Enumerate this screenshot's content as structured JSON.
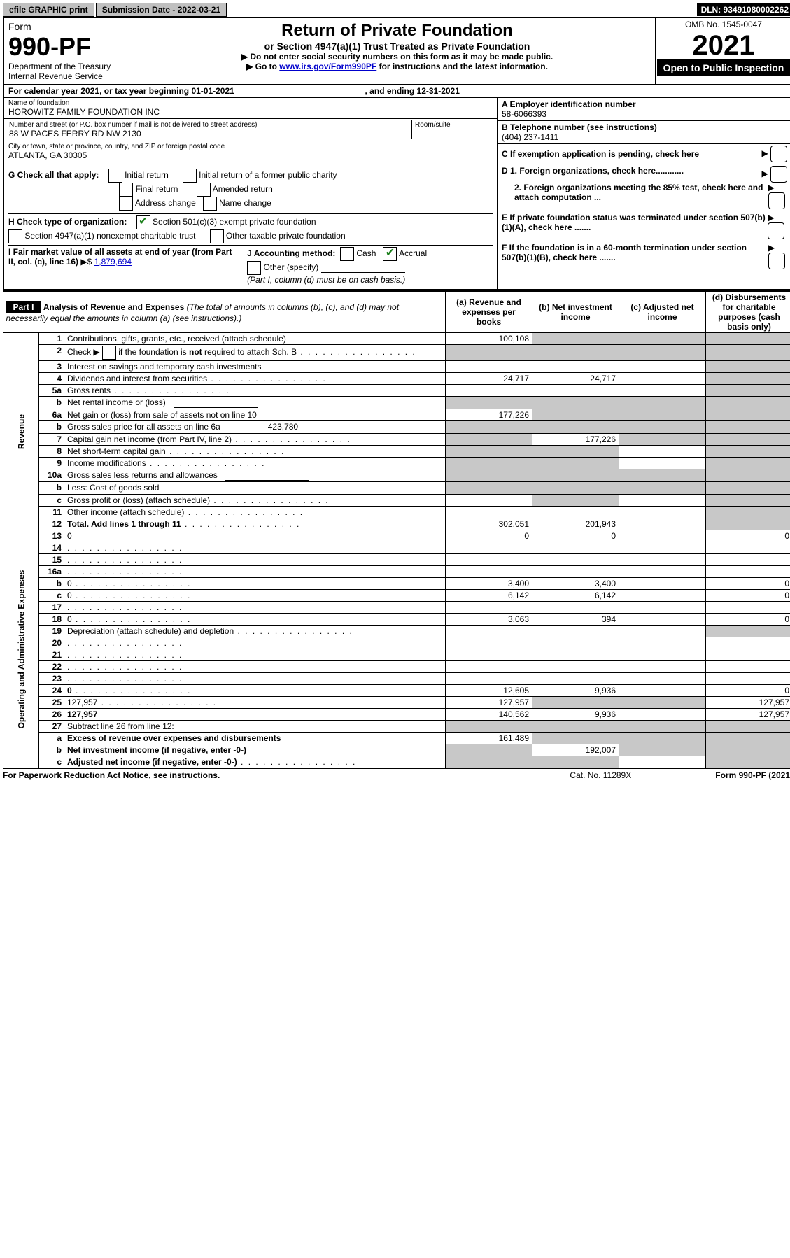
{
  "topbar": {
    "efile": "efile GRAPHIC print",
    "submission_label": "Submission Date - 2022-03-21",
    "dln": "DLN: 93491080002262"
  },
  "header": {
    "form_word": "Form",
    "form_number": "990-PF",
    "dept": "Department of the Treasury",
    "irs": "Internal Revenue Service",
    "title": "Return of Private Foundation",
    "subtitle": "or Section 4947(a)(1) Trust Treated as Private Foundation",
    "note1": "▶ Do not enter social security numbers on this form as it may be made public.",
    "note2_pre": "▶ Go to ",
    "note2_link": "www.irs.gov/Form990PF",
    "note2_post": " for instructions and the latest information.",
    "omb": "OMB No. 1545-0047",
    "year": "2021",
    "inspect": "Open to Public Inspection"
  },
  "period": {
    "line_pre": "For calendar year 2021, or tax year beginning 01-01-2021",
    "line_mid": ", and ending 12-31-2021"
  },
  "entity": {
    "name_label": "Name of foundation",
    "name": "HOROWITZ FAMILY FOUNDATION INC",
    "street_label": "Number and street (or P.O. box number if mail is not delivered to street address)",
    "street": "88 W PACES FERRY RD NW 2130",
    "room_label": "Room/suite",
    "city_label": "City or town, state or province, country, and ZIP or foreign postal code",
    "city": "ATLANTA, GA  30305",
    "a_label": "A Employer identification number",
    "a_value": "58-6066393",
    "b_label": "B Telephone number (see instructions)",
    "b_value": "(404) 237-1411",
    "c_label": "C If exemption application is pending, check here",
    "d1": "D 1. Foreign organizations, check here............",
    "d2": "2. Foreign organizations meeting the 85% test, check here and attach computation ...",
    "e": "E  If private foundation status was terminated under section 507(b)(1)(A), check here .......",
    "f": "F  If the foundation is in a 60-month termination under section 507(b)(1)(B), check here .......",
    "g_label": "G Check all that apply:",
    "g_opts": [
      "Initial return",
      "Initial return of a former public charity",
      "Final return",
      "Amended return",
      "Address change",
      "Name change"
    ],
    "h_label": "H Check type of organization:",
    "h_opts": [
      "Section 501(c)(3) exempt private foundation",
      "Section 4947(a)(1) nonexempt charitable trust",
      "Other taxable private foundation"
    ],
    "i_label": "I Fair market value of all assets at end of year (from Part II, col. (c), line 16)",
    "i_value": "1,879,694",
    "j_label": "J Accounting method:",
    "j_opts": [
      "Cash",
      "Accrual"
    ],
    "j_other": "Other (specify)",
    "j_note": "(Part I, column (d) must be on cash basis.)"
  },
  "part1": {
    "label": "Part I",
    "title": "Analysis of Revenue and Expenses",
    "title_note": " (The total of amounts in columns (b), (c), and (d) may not necessarily equal the amounts in column (a) (see instructions).)",
    "col_a": "(a)   Revenue and expenses per books",
    "col_b": "(b)   Net investment income",
    "col_c": "(c)   Adjusted net income",
    "col_d": "(d)   Disbursements for charitable purposes (cash basis only)",
    "side_rev": "Revenue",
    "side_exp": "Operating and Administrative Expenses"
  },
  "rows": [
    {
      "n": "1",
      "d": "Contributions, gifts, grants, etc., received (attach schedule)",
      "a": "100,108",
      "b_sh": true,
      "c_sh": true,
      "d_sh": true
    },
    {
      "n": "2",
      "d": "Check ▶ ☐ if the foundation is not required to attach Sch. B",
      "dots": true,
      "a_sh": true,
      "b_sh": true,
      "c_sh": true,
      "d_sh": true
    },
    {
      "n": "3",
      "d": "Interest on savings and temporary cash investments",
      "a": "",
      "b": "",
      "c": "",
      "d_sh": true
    },
    {
      "n": "4",
      "d": "Dividends and interest from securities",
      "dots": true,
      "a": "24,717",
      "b": "24,717",
      "c": "",
      "d_sh": true
    },
    {
      "n": "5a",
      "d": "Gross rents",
      "dots": true,
      "a": "",
      "b": "",
      "c": "",
      "d_sh": true
    },
    {
      "n": "b",
      "d": "Net rental income or (loss)",
      "inline": true,
      "a_sh": true,
      "b_sh": true,
      "c_sh": true,
      "d_sh": true
    },
    {
      "n": "6a",
      "d": "Net gain or (loss) from sale of assets not on line 10",
      "a": "177,226",
      "b_sh": true,
      "c_sh": true,
      "d_sh": true
    },
    {
      "n": "b",
      "d": "Gross sales price for all assets on line 6a",
      "inline_val": "423,780",
      "a_sh": true,
      "b_sh": true,
      "c_sh": true,
      "d_sh": true
    },
    {
      "n": "7",
      "d": "Capital gain net income (from Part IV, line 2)",
      "dots": true,
      "a_sh": true,
      "b": "177,226",
      "c_sh": true,
      "d_sh": true
    },
    {
      "n": "8",
      "d": "Net short-term capital gain",
      "dots": true,
      "a_sh": true,
      "b_sh": true,
      "c": "",
      "d_sh": true
    },
    {
      "n": "9",
      "d": "Income modifications",
      "dots": true,
      "a_sh": true,
      "b_sh": true,
      "c": "",
      "d_sh": true
    },
    {
      "n": "10a",
      "d": "Gross sales less returns and allowances",
      "inline": true,
      "a_sh": true,
      "b_sh": true,
      "c_sh": true,
      "d_sh": true
    },
    {
      "n": "b",
      "d": "Less: Cost of goods sold",
      "dots": true,
      "inline": true,
      "a_sh": true,
      "b_sh": true,
      "c_sh": true,
      "d_sh": true
    },
    {
      "n": "c",
      "d": "Gross profit or (loss) (attach schedule)",
      "dots": true,
      "a": "",
      "b_sh": true,
      "c": "",
      "d_sh": true
    },
    {
      "n": "11",
      "d": "Other income (attach schedule)",
      "dots": true,
      "a": "",
      "b": "",
      "c": "",
      "d_sh": true
    },
    {
      "n": "12",
      "d": "Total. Add lines 1 through 11",
      "dots": true,
      "bold": true,
      "a": "302,051",
      "b": "201,943",
      "c": "",
      "d_sh": true
    },
    {
      "n": "13",
      "d": "0",
      "a": "0",
      "b": "0",
      "c": ""
    },
    {
      "n": "14",
      "d": "",
      "dots": true,
      "a": "",
      "b": "",
      "c": ""
    },
    {
      "n": "15",
      "d": "",
      "dots": true,
      "a": "",
      "b": "",
      "c": ""
    },
    {
      "n": "16a",
      "d": "",
      "dots": true,
      "a": "",
      "b": "",
      "c": ""
    },
    {
      "n": "b",
      "d": "0",
      "dots": true,
      "a": "3,400",
      "b": "3,400",
      "c": ""
    },
    {
      "n": "c",
      "d": "0",
      "dots": true,
      "a": "6,142",
      "b": "6,142",
      "c": ""
    },
    {
      "n": "17",
      "d": "",
      "dots": true,
      "a": "",
      "b": "",
      "c": ""
    },
    {
      "n": "18",
      "d": "0",
      "dots": true,
      "a": "3,063",
      "b": "394",
      "c": ""
    },
    {
      "n": "19",
      "d": "Depreciation (attach schedule) and depletion",
      "dots": true,
      "a": "",
      "b": "",
      "c": "",
      "d_sh": true
    },
    {
      "n": "20",
      "d": "",
      "dots": true,
      "a": "",
      "b": "",
      "c": ""
    },
    {
      "n": "21",
      "d": "",
      "dots": true,
      "a": "",
      "b": "",
      "c": ""
    },
    {
      "n": "22",
      "d": "",
      "dots": true,
      "a": "",
      "b": "",
      "c": ""
    },
    {
      "n": "23",
      "d": "",
      "dots": true,
      "a": "",
      "b": "",
      "c": ""
    },
    {
      "n": "24",
      "d": "0",
      "dots": true,
      "bold": true,
      "a": "12,605",
      "b": "9,936",
      "c": ""
    },
    {
      "n": "25",
      "d": "127,957",
      "dots": true,
      "a": "127,957",
      "b_sh": true,
      "c_sh": true
    },
    {
      "n": "26",
      "d": "127,957",
      "bold": true,
      "a": "140,562",
      "b": "9,936",
      "c": ""
    },
    {
      "n": "27",
      "d": "Subtract line 26 from line 12:",
      "a_sh": true,
      "b_sh": true,
      "c_sh": true,
      "d_sh": true
    },
    {
      "n": "a",
      "d": "Excess of revenue over expenses and disbursements",
      "bold": true,
      "a": "161,489",
      "b_sh": true,
      "c_sh": true,
      "d_sh": true
    },
    {
      "n": "b",
      "d": "Net investment income (if negative, enter -0-)",
      "bold": true,
      "a_sh": true,
      "b": "192,007",
      "c_sh": true,
      "d_sh": true
    },
    {
      "n": "c",
      "d": "Adjusted net income (if negative, enter -0-)",
      "dots": true,
      "bold": true,
      "a_sh": true,
      "b_sh": true,
      "c": "",
      "d_sh": true
    }
  ],
  "footer": {
    "left": "For Paperwork Reduction Act Notice, see instructions.",
    "mid": "Cat. No. 11289X",
    "right": "Form 990-PF (2021)"
  },
  "colors": {
    "shaded": "#c8c8c8",
    "link": "#0000cc",
    "check": "#1a7f1a"
  }
}
